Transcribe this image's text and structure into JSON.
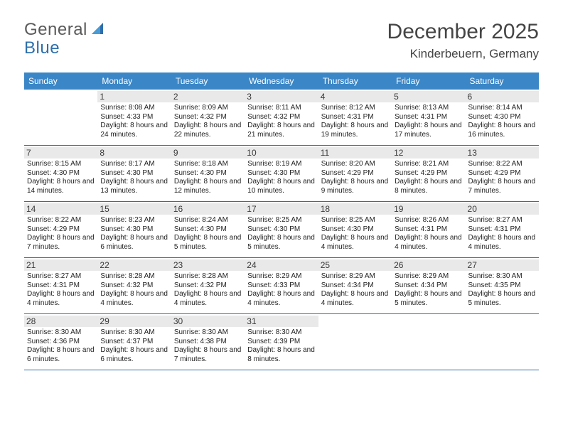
{
  "logo": {
    "text1": "General",
    "text2": "Blue"
  },
  "title": "December 2025",
  "location": "Kinderbeuern, Germany",
  "colors": {
    "header_bg": "#3b86c6",
    "header_text": "#ffffff",
    "row_border": "#2d6fad",
    "daynum_bg": "#e9e9e9",
    "text": "#222222",
    "logo_gray": "#5a5a5a",
    "logo_blue": "#2d6fad"
  },
  "dow": [
    "Sunday",
    "Monday",
    "Tuesday",
    "Wednesday",
    "Thursday",
    "Friday",
    "Saturday"
  ],
  "weeks": [
    [
      {
        "num": "",
        "sunrise": "",
        "sunset": "",
        "daylight": ""
      },
      {
        "num": "1",
        "sunrise": "8:08 AM",
        "sunset": "4:33 PM",
        "daylight": "8 hours and 24 minutes."
      },
      {
        "num": "2",
        "sunrise": "8:09 AM",
        "sunset": "4:32 PM",
        "daylight": "8 hours and 22 minutes."
      },
      {
        "num": "3",
        "sunrise": "8:11 AM",
        "sunset": "4:32 PM",
        "daylight": "8 hours and 21 minutes."
      },
      {
        "num": "4",
        "sunrise": "8:12 AM",
        "sunset": "4:31 PM",
        "daylight": "8 hours and 19 minutes."
      },
      {
        "num": "5",
        "sunrise": "8:13 AM",
        "sunset": "4:31 PM",
        "daylight": "8 hours and 17 minutes."
      },
      {
        "num": "6",
        "sunrise": "8:14 AM",
        "sunset": "4:30 PM",
        "daylight": "8 hours and 16 minutes."
      }
    ],
    [
      {
        "num": "7",
        "sunrise": "8:15 AM",
        "sunset": "4:30 PM",
        "daylight": "8 hours and 14 minutes."
      },
      {
        "num": "8",
        "sunrise": "8:17 AM",
        "sunset": "4:30 PM",
        "daylight": "8 hours and 13 minutes."
      },
      {
        "num": "9",
        "sunrise": "8:18 AM",
        "sunset": "4:30 PM",
        "daylight": "8 hours and 12 minutes."
      },
      {
        "num": "10",
        "sunrise": "8:19 AM",
        "sunset": "4:30 PM",
        "daylight": "8 hours and 10 minutes."
      },
      {
        "num": "11",
        "sunrise": "8:20 AM",
        "sunset": "4:29 PM",
        "daylight": "8 hours and 9 minutes."
      },
      {
        "num": "12",
        "sunrise": "8:21 AM",
        "sunset": "4:29 PM",
        "daylight": "8 hours and 8 minutes."
      },
      {
        "num": "13",
        "sunrise": "8:22 AM",
        "sunset": "4:29 PM",
        "daylight": "8 hours and 7 minutes."
      }
    ],
    [
      {
        "num": "14",
        "sunrise": "8:22 AM",
        "sunset": "4:29 PM",
        "daylight": "8 hours and 7 minutes."
      },
      {
        "num": "15",
        "sunrise": "8:23 AM",
        "sunset": "4:30 PM",
        "daylight": "8 hours and 6 minutes."
      },
      {
        "num": "16",
        "sunrise": "8:24 AM",
        "sunset": "4:30 PM",
        "daylight": "8 hours and 5 minutes."
      },
      {
        "num": "17",
        "sunrise": "8:25 AM",
        "sunset": "4:30 PM",
        "daylight": "8 hours and 5 minutes."
      },
      {
        "num": "18",
        "sunrise": "8:25 AM",
        "sunset": "4:30 PM",
        "daylight": "8 hours and 4 minutes."
      },
      {
        "num": "19",
        "sunrise": "8:26 AM",
        "sunset": "4:31 PM",
        "daylight": "8 hours and 4 minutes."
      },
      {
        "num": "20",
        "sunrise": "8:27 AM",
        "sunset": "4:31 PM",
        "daylight": "8 hours and 4 minutes."
      }
    ],
    [
      {
        "num": "21",
        "sunrise": "8:27 AM",
        "sunset": "4:31 PM",
        "daylight": "8 hours and 4 minutes."
      },
      {
        "num": "22",
        "sunrise": "8:28 AM",
        "sunset": "4:32 PM",
        "daylight": "8 hours and 4 minutes."
      },
      {
        "num": "23",
        "sunrise": "8:28 AM",
        "sunset": "4:32 PM",
        "daylight": "8 hours and 4 minutes."
      },
      {
        "num": "24",
        "sunrise": "8:29 AM",
        "sunset": "4:33 PM",
        "daylight": "8 hours and 4 minutes."
      },
      {
        "num": "25",
        "sunrise": "8:29 AM",
        "sunset": "4:34 PM",
        "daylight": "8 hours and 4 minutes."
      },
      {
        "num": "26",
        "sunrise": "8:29 AM",
        "sunset": "4:34 PM",
        "daylight": "8 hours and 5 minutes."
      },
      {
        "num": "27",
        "sunrise": "8:30 AM",
        "sunset": "4:35 PM",
        "daylight": "8 hours and 5 minutes."
      }
    ],
    [
      {
        "num": "28",
        "sunrise": "8:30 AM",
        "sunset": "4:36 PM",
        "daylight": "8 hours and 6 minutes."
      },
      {
        "num": "29",
        "sunrise": "8:30 AM",
        "sunset": "4:37 PM",
        "daylight": "8 hours and 6 minutes."
      },
      {
        "num": "30",
        "sunrise": "8:30 AM",
        "sunset": "4:38 PM",
        "daylight": "8 hours and 7 minutes."
      },
      {
        "num": "31",
        "sunrise": "8:30 AM",
        "sunset": "4:39 PM",
        "daylight": "8 hours and 8 minutes."
      },
      {
        "num": "",
        "sunrise": "",
        "sunset": "",
        "daylight": ""
      },
      {
        "num": "",
        "sunrise": "",
        "sunset": "",
        "daylight": ""
      },
      {
        "num": "",
        "sunrise": "",
        "sunset": "",
        "daylight": ""
      }
    ]
  ],
  "labels": {
    "sunrise": "Sunrise: ",
    "sunset": "Sunset: ",
    "daylight": "Daylight: "
  }
}
